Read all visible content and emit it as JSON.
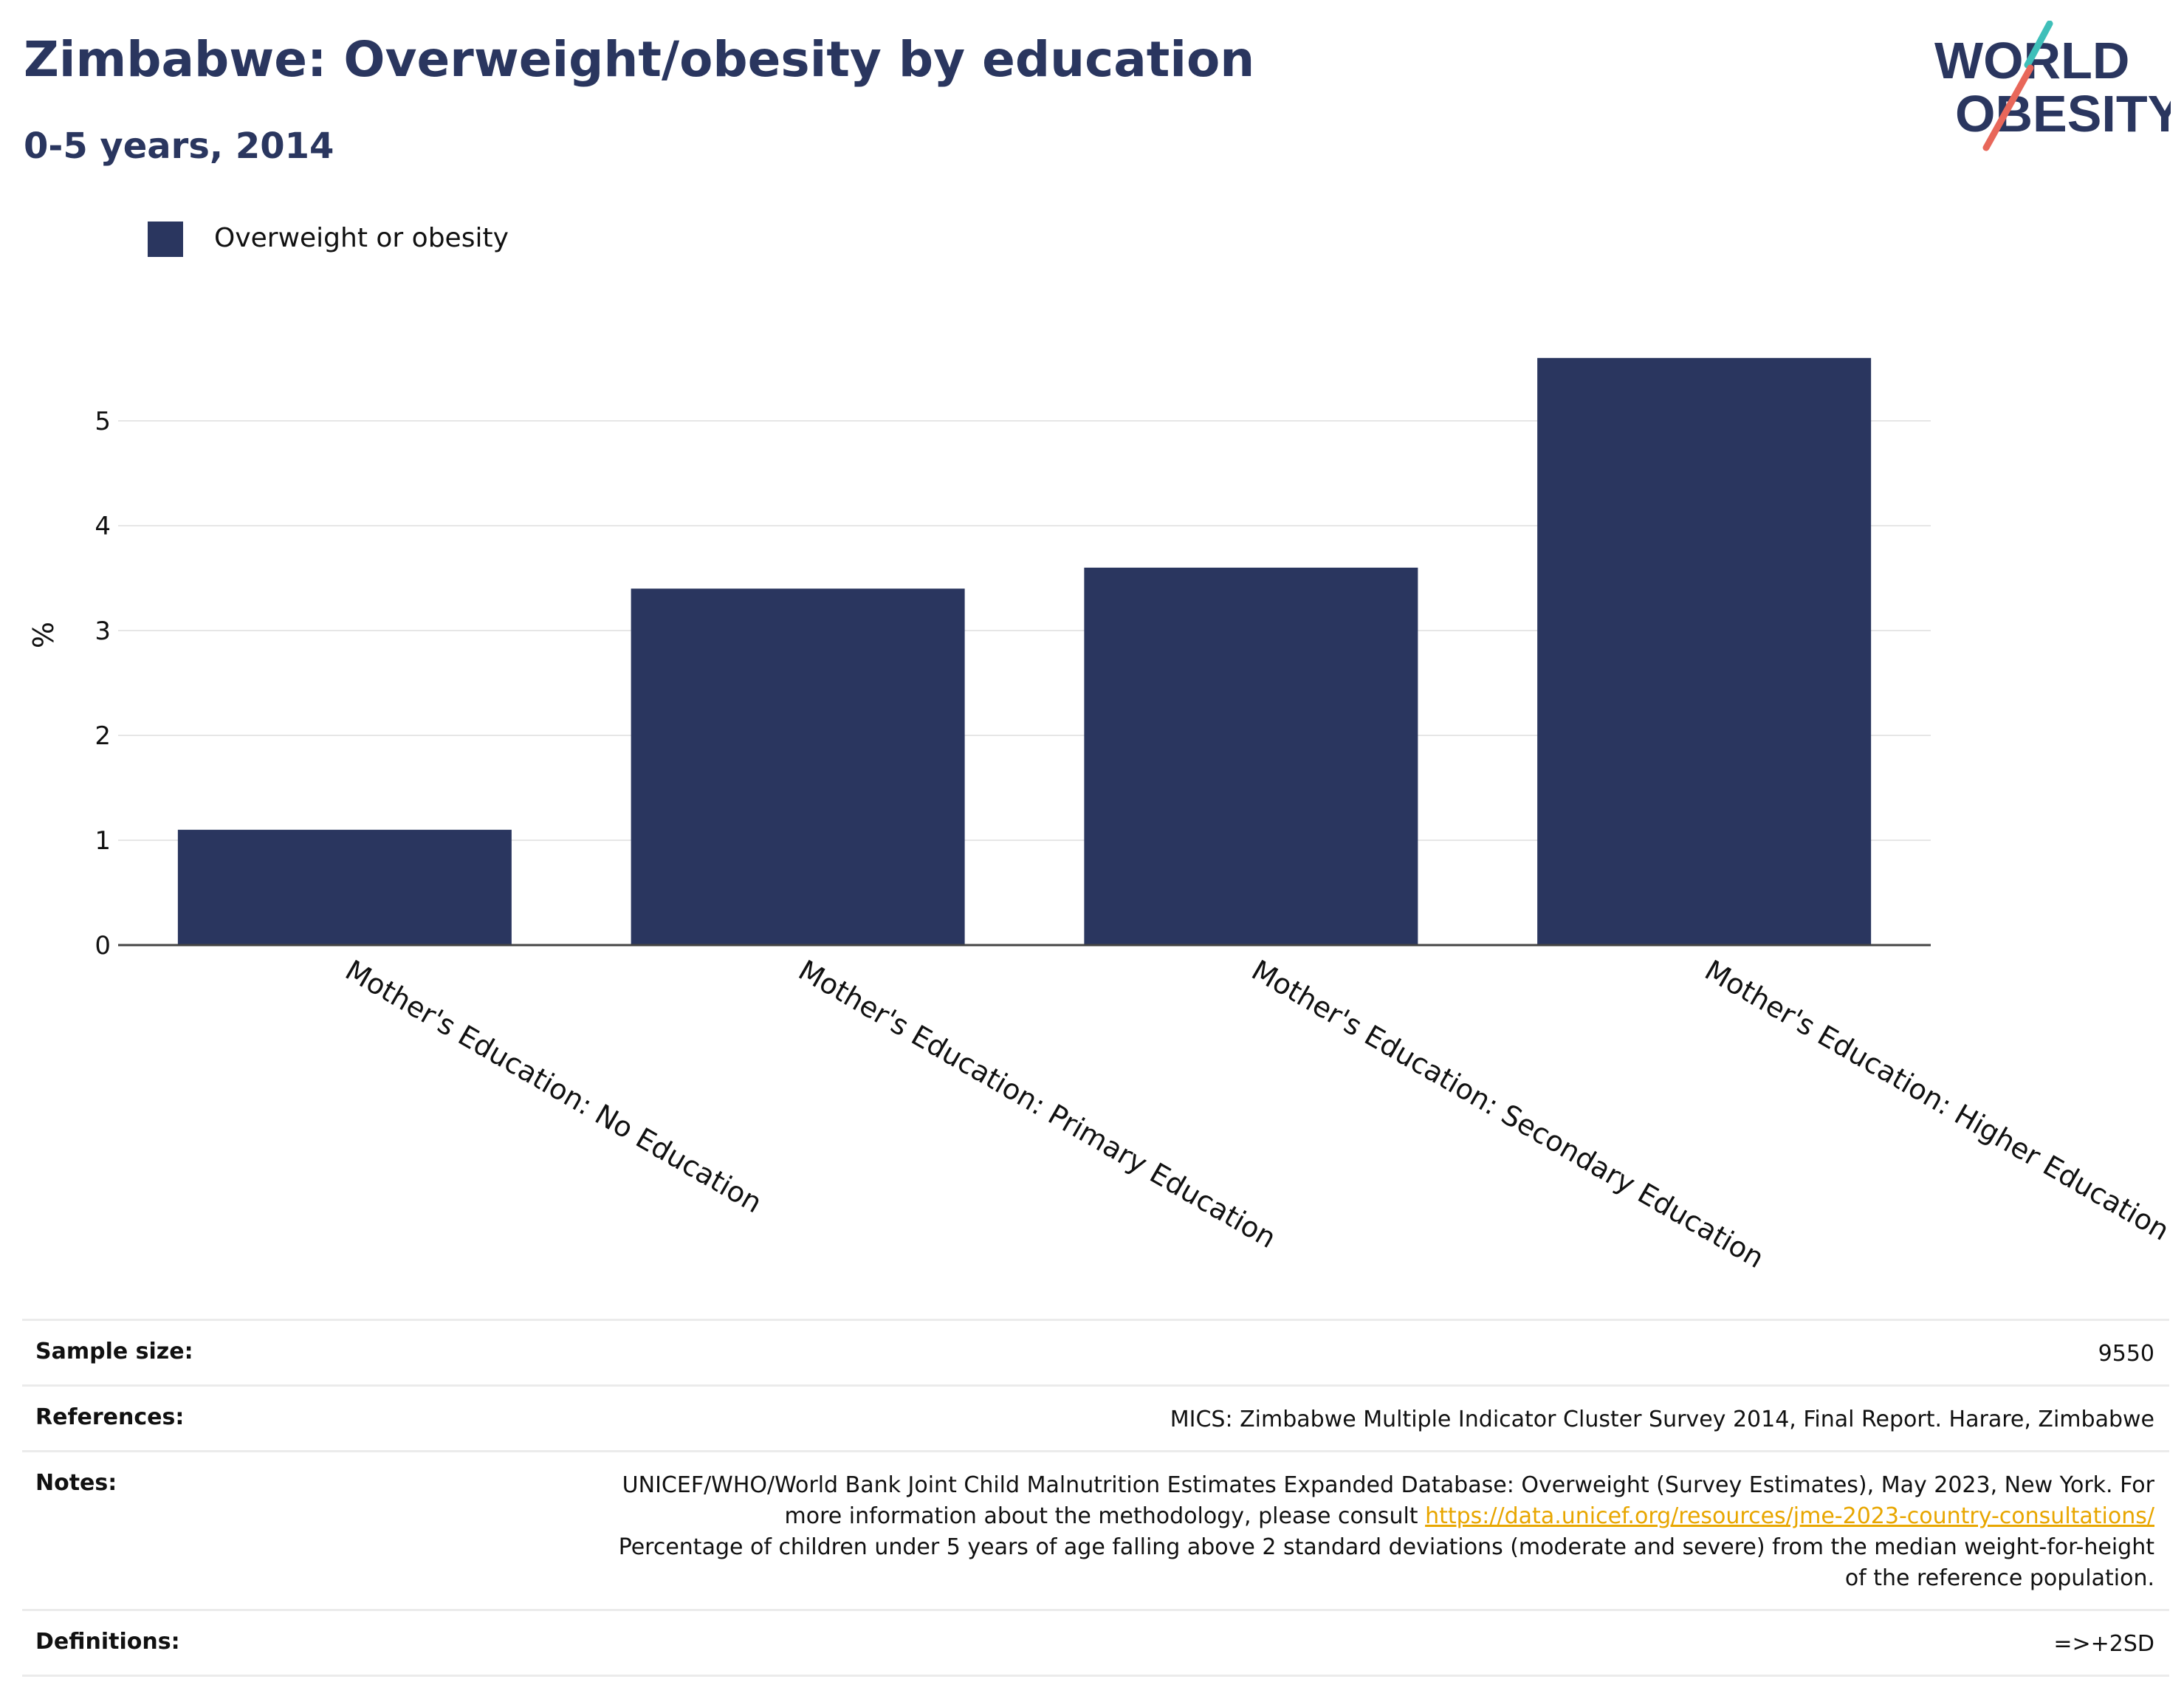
{
  "header": {
    "title": "Zimbabwe: Overweight/obesity by education",
    "subtitle": "0-5 years, 2014"
  },
  "logo": {
    "line1": "WORLD",
    "line2": "OBESITY"
  },
  "colors": {
    "bar": "#2a365f",
    "title": "#2a365f",
    "link": "#e8a600",
    "logo_teal": "#3fbfb9",
    "logo_coral": "#e8675a"
  },
  "chart_data": {
    "type": "bar",
    "categories": [
      "Mother's Education: No Education",
      "Mother's Education: Primary Education",
      "Mother's Education: Secondary Education",
      "Mother's Education: Higher Education"
    ],
    "series": [
      {
        "name": "Overweight or obesity",
        "values": [
          1.1,
          3.4,
          3.6,
          5.6
        ]
      }
    ],
    "ylabel": "%",
    "yticks": [
      0,
      1,
      2,
      3,
      4,
      5
    ],
    "ylim": [
      0,
      5.8
    ],
    "grid": true,
    "legend_position": "top-left"
  },
  "info": {
    "sample_size_label": "Sample size:",
    "sample_size_value": "9550",
    "references_label": "References:",
    "references_value": "MICS: Zimbabwe Multiple Indicator Cluster Survey 2014, Final Report. Harare, Zimbabwe",
    "notes_label": "Notes:",
    "notes_text1": "UNICEF/WHO/World Bank Joint Child Malnutrition Estimates Expanded Database: Overweight (Survey Estimates), May 2023, New York. For more information about the methodology, please consult ",
    "notes_link": "https://data.unicef.org/resources/jme-2023-country-consultations/",
    "notes_text2": "Percentage of children under 5 years of age falling above 2 standard deviations (moderate and severe) from the median weight-for-height of the reference population.",
    "definitions_label": "Definitions:",
    "definitions_value": "=>+2SD"
  }
}
